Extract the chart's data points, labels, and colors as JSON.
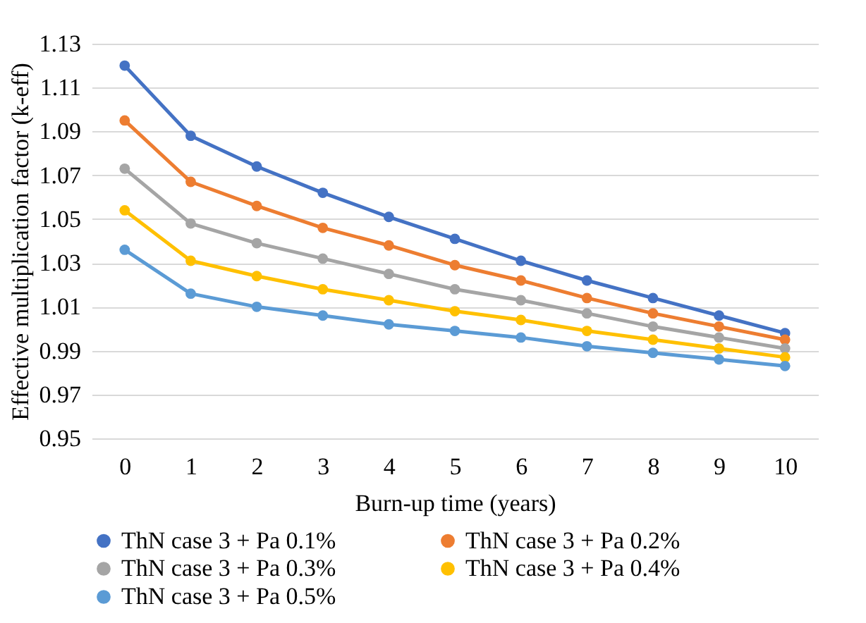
{
  "chart_data": {
    "type": "line",
    "xlabel": "Burn-up time (years)",
    "ylabel": "Effective multiplication factor (k-eff)",
    "categories": [
      "0",
      "1",
      "2",
      "3",
      "4",
      "5",
      "6",
      "7",
      "8",
      "9",
      "10"
    ],
    "ylim": [
      0.95,
      1.13
    ],
    "yticks": [
      0.95,
      0.97,
      0.99,
      1.01,
      1.03,
      1.05,
      1.07,
      1.09,
      1.11,
      1.13
    ],
    "grid": "y",
    "legend": "bottom",
    "marker": "circle",
    "line_style": "solid",
    "series": [
      {
        "name": "ThN case 3 + Pa 0.1%",
        "color": "#4472c4",
        "values": [
          1.12,
          1.088,
          1.074,
          1.062,
          1.051,
          1.041,
          1.031,
          1.022,
          1.014,
          1.006,
          0.998
        ]
      },
      {
        "name": "ThN case 3 + Pa 0.2%",
        "color": "#ed7d31",
        "values": [
          1.095,
          1.067,
          1.056,
          1.046,
          1.038,
          1.029,
          1.022,
          1.014,
          1.007,
          1.001,
          0.995
        ]
      },
      {
        "name": "ThN case 3 + Pa 0.3%",
        "color": "#a5a5a5",
        "values": [
          1.073,
          1.048,
          1.039,
          1.032,
          1.025,
          1.018,
          1.013,
          1.007,
          1.001,
          0.996,
          0.991
        ]
      },
      {
        "name": "ThN case 3 + Pa 0.4%",
        "color": "#ffc000",
        "values": [
          1.054,
          1.031,
          1.024,
          1.018,
          1.013,
          1.008,
          1.004,
          0.999,
          0.995,
          0.991,
          0.987
        ]
      },
      {
        "name": "ThN case 3 + Pa 0.5%",
        "color": "#5b9bd5",
        "values": [
          1.036,
          1.016,
          1.01,
          1.006,
          1.002,
          0.999,
          0.996,
          0.992,
          0.989,
          0.986,
          0.983
        ]
      }
    ]
  }
}
